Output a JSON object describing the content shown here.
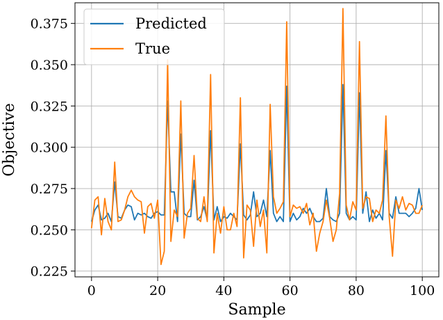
{
  "chart_data": {
    "type": "line",
    "xlabel": "Sample",
    "ylabel": "Objective",
    "xlim": [
      -5,
      105
    ],
    "ylim": [
      0.2215,
      0.3875
    ],
    "xticks": [
      0,
      20,
      40,
      60,
      80,
      100
    ],
    "xtick_labels": [
      "0",
      "20",
      "40",
      "60",
      "80",
      "100"
    ],
    "yticks": [
      0.225,
      0.25,
      0.275,
      0.3,
      0.325,
      0.35,
      0.375
    ],
    "ytick_labels": [
      "0.225",
      "0.250",
      "0.275",
      "0.300",
      "0.325",
      "0.350",
      "0.375"
    ],
    "grid": true,
    "legend_position": "top-left",
    "x": [
      0,
      1,
      2,
      3,
      4,
      5,
      6,
      7,
      8,
      9,
      10,
      11,
      12,
      13,
      14,
      15,
      16,
      17,
      18,
      19,
      20,
      21,
      22,
      23,
      24,
      25,
      26,
      27,
      28,
      29,
      30,
      31,
      32,
      33,
      34,
      35,
      36,
      37,
      38,
      39,
      40,
      41,
      42,
      43,
      44,
      45,
      46,
      47,
      48,
      49,
      50,
      51,
      52,
      53,
      54,
      55,
      56,
      57,
      58,
      59,
      60,
      61,
      62,
      63,
      64,
      65,
      66,
      67,
      68,
      69,
      70,
      71,
      72,
      73,
      74,
      75,
      76,
      77,
      78,
      79,
      80,
      81,
      82,
      83,
      84,
      85,
      86,
      87,
      88,
      89,
      90,
      91,
      92,
      93,
      94,
      95,
      96,
      97,
      98,
      99,
      100
    ],
    "series": [
      {
        "name": "Predicted",
        "color": "#1f77b4",
        "values": [
          0.255,
          0.262,
          0.265,
          0.256,
          0.257,
          0.26,
          0.255,
          0.279,
          0.258,
          0.257,
          0.262,
          0.265,
          0.264,
          0.256,
          0.26,
          0.259,
          0.26,
          0.258,
          0.257,
          0.26,
          0.261,
          0.259,
          0.259,
          0.328,
          0.273,
          0.273,
          0.255,
          0.308,
          0.26,
          0.258,
          0.258,
          0.28,
          0.256,
          0.258,
          0.264,
          0.256,
          0.31,
          0.256,
          0.264,
          0.255,
          0.258,
          0.257,
          0.26,
          0.258,
          0.256,
          0.302,
          0.259,
          0.256,
          0.259,
          0.273,
          0.258,
          0.26,
          0.268,
          0.258,
          0.298,
          0.26,
          0.255,
          0.258,
          0.255,
          0.337,
          0.255,
          0.26,
          0.256,
          0.258,
          0.263,
          0.26,
          0.263,
          0.258,
          0.255,
          0.255,
          0.257,
          0.275,
          0.258,
          0.256,
          0.255,
          0.26,
          0.338,
          0.26,
          0.256,
          0.258,
          0.256,
          0.333,
          0.26,
          0.273,
          0.255,
          0.262,
          0.257,
          0.26,
          0.256,
          0.298,
          0.26,
          0.257,
          0.27,
          0.26,
          0.26,
          0.26,
          0.258,
          0.26,
          0.263,
          0.275,
          0.262
        ]
      },
      {
        "name": "True",
        "color": "#ff7f0e",
        "values": [
          0.251,
          0.268,
          0.27,
          0.247,
          0.269,
          0.255,
          0.25,
          0.291,
          0.255,
          0.256,
          0.262,
          0.27,
          0.274,
          0.27,
          0.268,
          0.267,
          0.248,
          0.264,
          0.266,
          0.257,
          0.268,
          0.229,
          0.237,
          0.353,
          0.243,
          0.262,
          0.258,
          0.328,
          0.245,
          0.26,
          0.263,
          0.295,
          0.257,
          0.255,
          0.27,
          0.255,
          0.344,
          0.236,
          0.26,
          0.248,
          0.264,
          0.25,
          0.25,
          0.26,
          0.252,
          0.33,
          0.233,
          0.265,
          0.262,
          0.24,
          0.268,
          0.252,
          0.262,
          0.236,
          0.326,
          0.27,
          0.26,
          0.263,
          0.267,
          0.376,
          0.258,
          0.265,
          0.263,
          0.264,
          0.26,
          0.266,
          0.253,
          0.26,
          0.237,
          0.248,
          0.255,
          0.268,
          0.257,
          0.243,
          0.25,
          0.272,
          0.384,
          0.265,
          0.256,
          0.267,
          0.262,
          0.364,
          0.263,
          0.27,
          0.269,
          0.255,
          0.262,
          0.26,
          0.268,
          0.319,
          0.258,
          0.234,
          0.268,
          0.263,
          0.27,
          0.262,
          0.266,
          0.265,
          0.26,
          0.26,
          0.265
        ]
      }
    ]
  }
}
